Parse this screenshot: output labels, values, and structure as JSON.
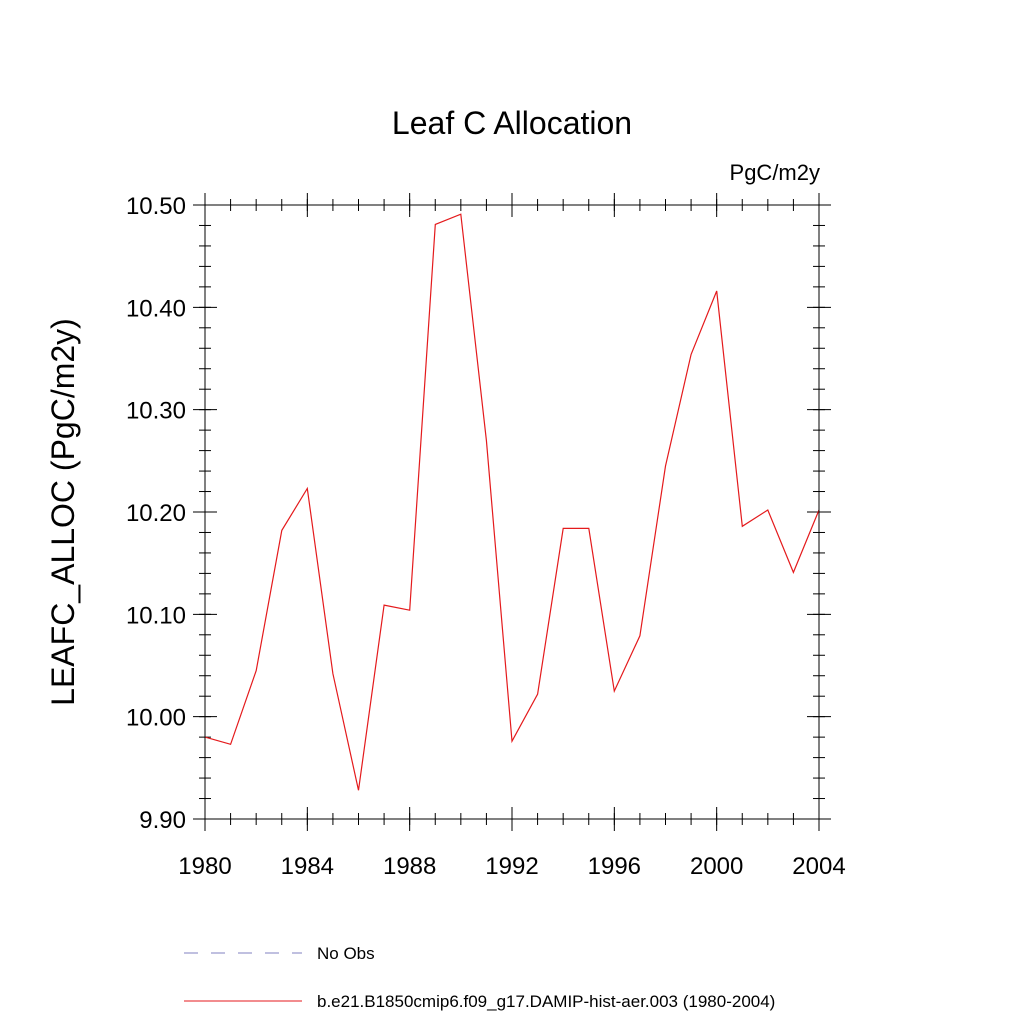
{
  "chart_data": {
    "type": "line",
    "title": "Leaf C Allocation",
    "units_label": "PgC/m2y",
    "xlabel": "",
    "ylabel": "LEAFC_ALLOC  (PgC/m2y)",
    "xlim": [
      1980,
      2004
    ],
    "ylim": [
      9.9,
      10.5
    ],
    "x_ticks": [
      1980,
      1984,
      1988,
      1992,
      1996,
      2000,
      2004
    ],
    "x_tick_labels": [
      "1980",
      "1984",
      "1988",
      "1992",
      "1996",
      "2000",
      "2004"
    ],
    "x_minor_step": 1,
    "y_ticks": [
      9.9,
      10.0,
      10.1,
      10.2,
      10.3,
      10.4,
      10.5
    ],
    "y_tick_labels": [
      "9.90",
      "10.00",
      "10.10",
      "10.20",
      "10.30",
      "10.40",
      "10.50"
    ],
    "y_minor_step": 0.02,
    "grid": false,
    "legend_position": "bottom",
    "series": [
      {
        "name": "b.e21.B1850cmip6.f09_g17.DAMIP-hist-aer.003 (1980-2004)",
        "color": "#e41a1c",
        "style": "solid",
        "x": [
          1980,
          1981,
          1982,
          1983,
          1984,
          1985,
          1986,
          1987,
          1988,
          1989,
          1990,
          1991,
          1992,
          1993,
          1994,
          1995,
          1996,
          1997,
          1998,
          1999,
          2000,
          2001,
          2002,
          2003,
          2004
        ],
        "values": [
          9.98,
          9.973,
          10.045,
          10.182,
          10.223,
          10.042,
          9.928,
          10.109,
          10.104,
          10.481,
          10.491,
          10.27,
          9.976,
          10.022,
          10.184,
          10.184,
          10.025,
          10.079,
          10.245,
          10.354,
          10.416,
          10.186,
          10.202,
          10.141,
          10.202
        ]
      }
    ],
    "legend": [
      {
        "label": "No Obs",
        "color": "#8080c0",
        "style": "dashed"
      },
      {
        "label": "b.e21.B1850cmip6.f09_g17.DAMIP-hist-aer.003 (1980-2004)",
        "color": "#e41a1c",
        "style": "solid"
      }
    ]
  }
}
